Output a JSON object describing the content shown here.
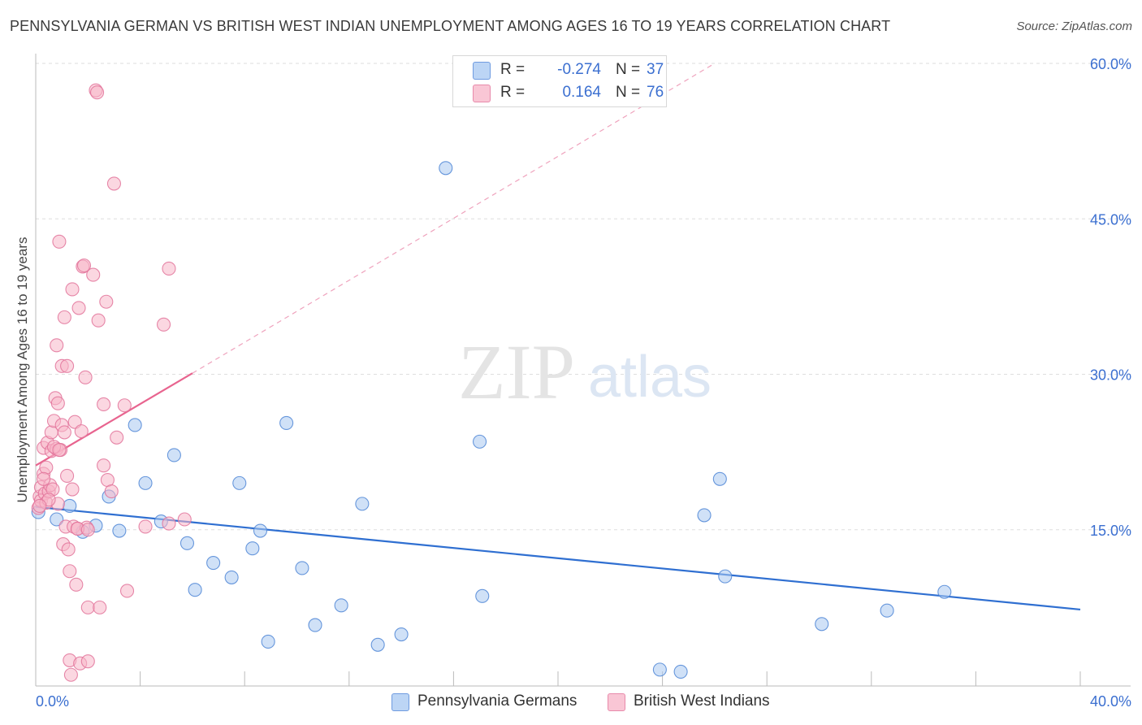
{
  "chart_data": {
    "type": "scatter",
    "title": "PENNSYLVANIA GERMAN VS BRITISH WEST INDIAN UNEMPLOYMENT AMONG AGES 16 TO 19 YEARS CORRELATION CHART",
    "source": "Source: ZipAtlas.com",
    "xlabel": "",
    "ylabel": "Unemployment Among Ages 16 to 19 years",
    "xlim": [
      0,
      40
    ],
    "ylim": [
      0,
      60
    ],
    "x_tick_labels": [
      "0.0%",
      "40.0%"
    ],
    "y_ticks": [
      15,
      30,
      45,
      60
    ],
    "y_tick_labels": [
      "15.0%",
      "30.0%",
      "45.0%",
      "60.0%"
    ],
    "grid": true,
    "watermark": {
      "zip": "ZIP",
      "atlas": "atlas"
    },
    "legend": {
      "r_label": "R =",
      "n_label": "N =",
      "entries": [
        {
          "name": "Pennsylvania Germans",
          "r": "-0.274",
          "n": "37",
          "color": "#a9c8f0",
          "edge": "#4f86d6"
        },
        {
          "name": "British West Indians",
          "r": "0.164",
          "n": "76",
          "color": "#f7b6c8",
          "edge": "#e2739a"
        }
      ]
    },
    "series": [
      {
        "name": "Pennsylvania Germans",
        "color": "#a9c8f0",
        "edge": "#4f86d6",
        "trend": {
          "x": [
            0,
            40
          ],
          "y": [
            17.2,
            7.3
          ],
          "color": "#2f6fd1"
        },
        "points": [
          [
            0.1,
            16.7
          ],
          [
            0.8,
            16.0
          ],
          [
            1.3,
            17.3
          ],
          [
            1.8,
            14.8
          ],
          [
            2.3,
            15.4
          ],
          [
            2.8,
            18.2
          ],
          [
            3.2,
            14.9
          ],
          [
            3.8,
            25.1
          ],
          [
            4.2,
            19.5
          ],
          [
            4.8,
            15.8
          ],
          [
            5.3,
            22.2
          ],
          [
            5.8,
            13.7
          ],
          [
            6.1,
            9.2
          ],
          [
            6.8,
            11.8
          ],
          [
            7.5,
            10.4
          ],
          [
            7.8,
            19.5
          ],
          [
            8.3,
            13.2
          ],
          [
            8.6,
            14.9
          ],
          [
            8.9,
            4.2
          ],
          [
            9.6,
            25.3
          ],
          [
            10.2,
            11.3
          ],
          [
            10.7,
            5.8
          ],
          [
            11.7,
            7.7
          ],
          [
            12.5,
            17.5
          ],
          [
            13.1,
            3.9
          ],
          [
            14.0,
            4.9
          ],
          [
            15.7,
            49.9
          ],
          [
            17.0,
            23.5
          ],
          [
            17.1,
            8.6
          ],
          [
            23.9,
            1.5
          ],
          [
            24.7,
            1.3
          ],
          [
            25.6,
            16.4
          ],
          [
            26.2,
            19.9
          ],
          [
            26.4,
            10.5
          ],
          [
            30.1,
            5.9
          ],
          [
            32.6,
            7.2
          ],
          [
            34.8,
            9.0
          ]
        ]
      },
      {
        "name": "British West Indians",
        "color": "#f7b6c8",
        "edge": "#e2739a",
        "trend": {
          "x": [
            0,
            6
          ],
          "y": [
            21.2,
            30.1
          ],
          "color": "#e8648f",
          "dashed_to": [
            26,
            60
          ]
        },
        "points": [
          [
            0.1,
            17.1
          ],
          [
            0.15,
            18.2
          ],
          [
            0.2,
            19.1
          ],
          [
            0.2,
            17.8
          ],
          [
            0.3,
            20.4
          ],
          [
            0.3,
            22.9
          ],
          [
            0.35,
            18.5
          ],
          [
            0.4,
            17.6
          ],
          [
            0.4,
            21.0
          ],
          [
            0.45,
            23.4
          ],
          [
            0.5,
            18.7
          ],
          [
            0.55,
            19.3
          ],
          [
            0.6,
            24.4
          ],
          [
            0.6,
            22.6
          ],
          [
            0.65,
            18.9
          ],
          [
            0.7,
            25.5
          ],
          [
            0.75,
            27.7
          ],
          [
            0.8,
            32.8
          ],
          [
            0.8,
            22.8
          ],
          [
            0.85,
            27.2
          ],
          [
            0.85,
            17.5
          ],
          [
            0.9,
            42.8
          ],
          [
            0.95,
            22.7
          ],
          [
            1.0,
            30.8
          ],
          [
            1.0,
            25.1
          ],
          [
            1.05,
            13.6
          ],
          [
            1.1,
            35.5
          ],
          [
            1.1,
            24.4
          ],
          [
            1.15,
            15.3
          ],
          [
            1.2,
            20.2
          ],
          [
            1.2,
            30.8
          ],
          [
            1.25,
            13.1
          ],
          [
            1.3,
            2.4
          ],
          [
            1.3,
            11.0
          ],
          [
            1.35,
            1.0
          ],
          [
            1.4,
            38.2
          ],
          [
            1.4,
            18.9
          ],
          [
            1.45,
            15.3
          ],
          [
            1.5,
            25.4
          ],
          [
            1.55,
            9.7
          ],
          [
            1.6,
            15.1
          ],
          [
            1.65,
            36.4
          ],
          [
            1.7,
            2.1
          ],
          [
            1.75,
            24.5
          ],
          [
            1.8,
            40.4
          ],
          [
            1.85,
            40.5
          ],
          [
            1.9,
            29.7
          ],
          [
            1.95,
            15.2
          ],
          [
            2.0,
            7.5
          ],
          [
            2.0,
            2.3
          ],
          [
            2.2,
            39.6
          ],
          [
            2.3,
            57.4
          ],
          [
            2.35,
            57.2
          ],
          [
            2.4,
            35.2
          ],
          [
            2.45,
            7.5
          ],
          [
            2.6,
            21.2
          ],
          [
            2.6,
            27.1
          ],
          [
            2.7,
            37.0
          ],
          [
            2.75,
            19.8
          ],
          [
            2.9,
            18.7
          ],
          [
            3.0,
            48.4
          ],
          [
            3.1,
            23.9
          ],
          [
            3.4,
            27.0
          ],
          [
            3.5,
            9.1
          ],
          [
            4.2,
            15.3
          ],
          [
            4.9,
            34.8
          ],
          [
            5.1,
            40.2
          ],
          [
            5.1,
            15.6
          ],
          [
            5.7,
            16.0
          ],
          [
            0.5,
            17.9
          ],
          [
            0.7,
            23.0
          ],
          [
            1.6,
            15.1
          ],
          [
            0.3,
            19.9
          ],
          [
            0.9,
            22.7
          ],
          [
            0.15,
            17.3
          ],
          [
            2.0,
            15.0
          ]
        ]
      }
    ]
  }
}
